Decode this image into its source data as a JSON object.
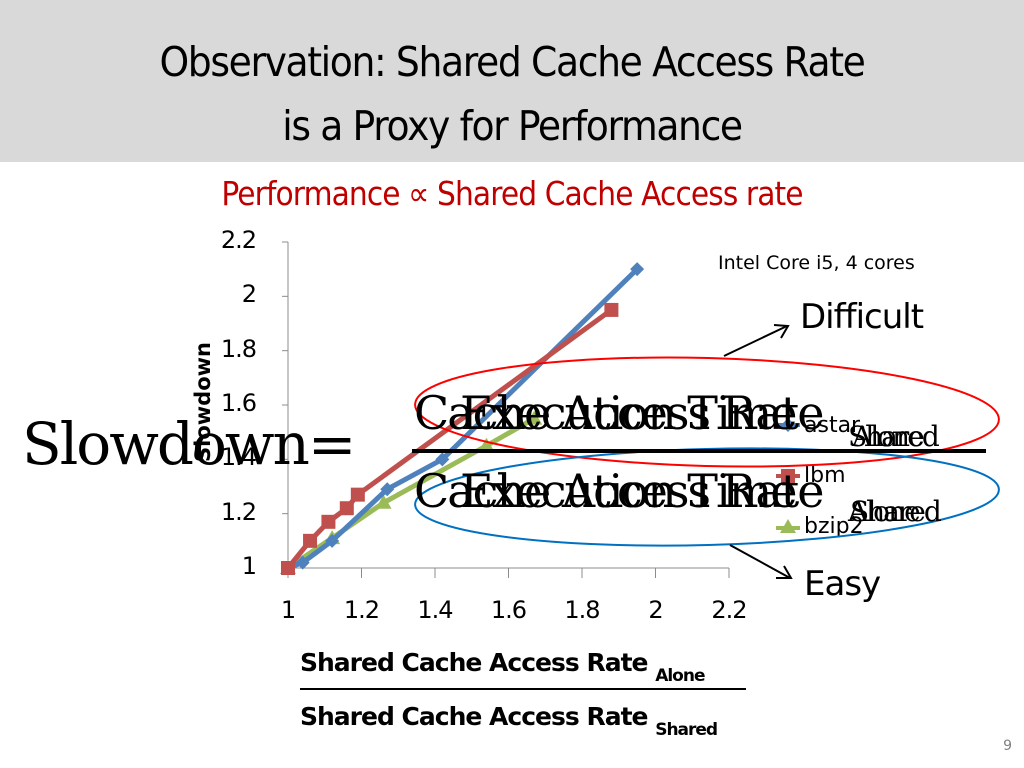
{
  "slide": {
    "title_line1": "Observation: Shared Cache Access Rate",
    "title_line2": "is a Proxy for Performance",
    "subtitle": "Performance ∝ Shared Cache Access rate",
    "page_number": "9",
    "colors": {
      "title_band": "#d9d9d9",
      "subtitle": "#c00000",
      "difficult_ellipse": "#ff0000",
      "easy_ellipse": "#0070c0"
    }
  },
  "annotations": {
    "platform": "Intel Core i5, 4 cores",
    "difficult": "Difficult",
    "easy": "Easy"
  },
  "formula_overlay": {
    "lhs": "Slowdown=",
    "num_a": "Cache Access Rate",
    "num_a_sub": "Alone",
    "den_a": "Cache Access Rate",
    "den_a_sub": "Shared",
    "num_b": "Execution Time",
    "num_b_sub": "Shared",
    "den_b": "Execution Time",
    "den_b_sub": "Alone"
  },
  "xaxis_formula": {
    "numerator": "Shared Cache Access Rate",
    "numerator_sub": "Alone",
    "denominator": "Shared Cache Access Rate",
    "denominator_sub": "Shared"
  },
  "chart_data": {
    "type": "line",
    "title": "",
    "xlabel": "Shared Cache Access Rate Alone / Shared Cache Access Rate Shared",
    "ylabel": "Slowdown",
    "xlim": [
      1,
      2.2
    ],
    "ylim": [
      1,
      2.2
    ],
    "x_ticks": [
      "1",
      "1.2",
      "1.4",
      "1.6",
      "1.8",
      "2",
      "2.2"
    ],
    "y_ticks": [
      "1",
      "1.2",
      "1.4",
      "1.6",
      "1.8",
      "2",
      "2.2"
    ],
    "grid": false,
    "legend_position": "right",
    "series": [
      {
        "name": "astar",
        "color": "#4f81bd",
        "marker": "diamond",
        "x": [
          1.0,
          1.04,
          1.12,
          1.27,
          1.42,
          1.95
        ],
        "y": [
          1.0,
          1.02,
          1.1,
          1.29,
          1.4,
          2.1
        ]
      },
      {
        "name": "lbm",
        "color": "#c0504d",
        "marker": "square",
        "x": [
          1.0,
          1.06,
          1.11,
          1.16,
          1.19,
          1.88
        ],
        "y": [
          1.0,
          1.1,
          1.17,
          1.22,
          1.27,
          1.95
        ]
      },
      {
        "name": "bzip2",
        "color": "#9bbb59",
        "marker": "triangle",
        "x": [
          1.0,
          1.12,
          1.26,
          1.54,
          1.67
        ],
        "y": [
          1.0,
          1.11,
          1.24,
          1.45,
          1.55
        ]
      }
    ]
  }
}
